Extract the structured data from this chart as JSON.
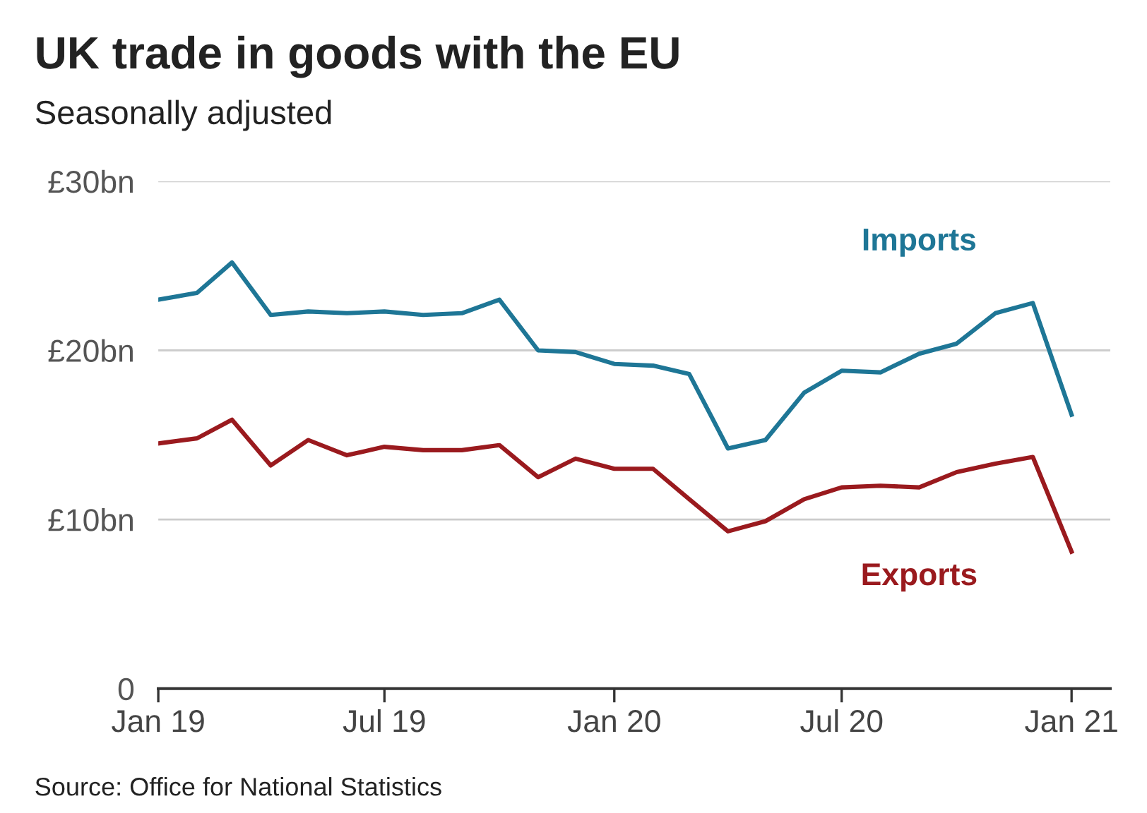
{
  "chart_data": {
    "type": "line",
    "title": "UK trade in goods with the EU",
    "subtitle": "Seasonally adjusted",
    "x": [
      "2019-01",
      "2019-02",
      "2019-03",
      "2019-04",
      "2019-05",
      "2019-06",
      "2019-07",
      "2019-08",
      "2019-09",
      "2019-10",
      "2019-11",
      "2019-12",
      "2020-01",
      "2020-02",
      "2020-03",
      "2020-04",
      "2020-05",
      "2020-06",
      "2020-07",
      "2020-08",
      "2020-09",
      "2020-10",
      "2020-11",
      "2020-12",
      "2021-01"
    ],
    "series": [
      {
        "name": "Imports",
        "color": "#1e7696",
        "values": [
          23.0,
          23.4,
          25.2,
          22.1,
          22.3,
          22.2,
          22.3,
          22.1,
          22.2,
          23.0,
          20.0,
          19.9,
          19.2,
          19.1,
          18.6,
          14.2,
          14.7,
          17.5,
          18.8,
          18.7,
          19.8,
          20.4,
          22.2,
          22.8,
          16.2
        ]
      },
      {
        "name": "Exports",
        "color": "#9a1a1e",
        "values": [
          14.5,
          14.8,
          15.9,
          13.2,
          14.7,
          13.8,
          14.3,
          14.1,
          14.1,
          14.4,
          12.5,
          13.6,
          13.0,
          13.0,
          11.2,
          9.3,
          9.9,
          11.2,
          11.9,
          12.0,
          11.9,
          12.8,
          13.3,
          13.7,
          8.1
        ]
      }
    ],
    "xlim": [
      "2019-01",
      "2021-02"
    ],
    "xticks": [
      {
        "value": "2019-01",
        "label": "Jan 19"
      },
      {
        "value": "2019-07",
        "label": "Jul 19"
      },
      {
        "value": "2020-01",
        "label": "Jan 20"
      },
      {
        "value": "2020-07",
        "label": "Jul 20"
      },
      {
        "value": "2021-01",
        "label": "Jan 21"
      }
    ],
    "ylim": [
      0,
      30
    ],
    "yticks": [
      0,
      {
        "value": 10,
        "label": "£10bn"
      },
      {
        "value": 20,
        "label": "£20bn"
      },
      {
        "value": 30,
        "label": "£30bn"
      }
    ],
    "grid": "y",
    "legend": false,
    "marker": "none",
    "line_style": "solid",
    "annotations": [
      "Source: Office for National Statistics"
    ]
  }
}
